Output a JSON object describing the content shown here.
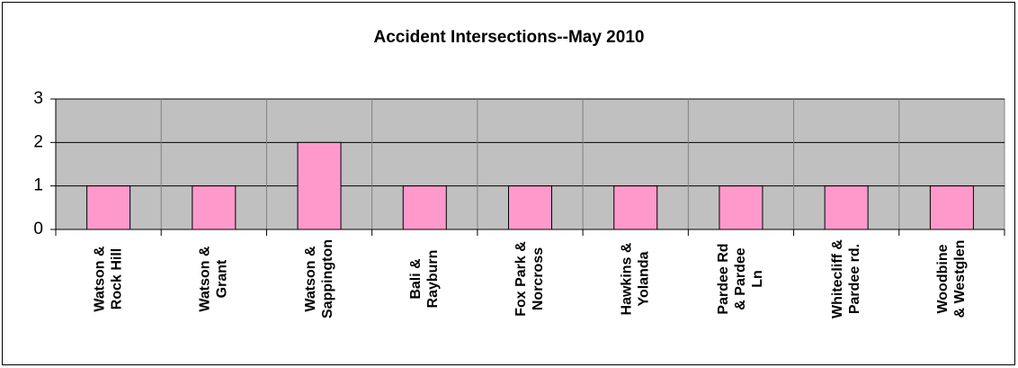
{
  "chart_data": {
    "type": "bar",
    "title": "Accident Intersections--May 2010",
    "categories": [
      [
        "Watson &",
        "Rock Hill"
      ],
      [
        "Watson &",
        "Grant"
      ],
      [
        "Watson &",
        "Sappington"
      ],
      [
        "Bali &",
        "Rayburn"
      ],
      [
        "Fox Park &",
        "Norcross"
      ],
      [
        "Hawkins &",
        "Yolanda"
      ],
      [
        "Pardee Rd",
        "& Pardee",
        "Ln"
      ],
      [
        "Whitecliff &",
        "Pardee rd."
      ],
      [
        "Woodbine",
        "& Westglen"
      ]
    ],
    "values": [
      1,
      1,
      2,
      1,
      1,
      1,
      1,
      1,
      1
    ],
    "color": "#ff99cc",
    "ylim": [
      0,
      3
    ],
    "yticks": [
      0,
      1,
      2,
      3
    ],
    "grid": true
  }
}
